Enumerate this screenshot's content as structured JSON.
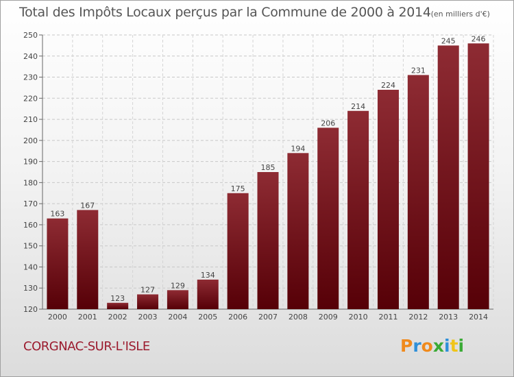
{
  "title": {
    "main": "Total des Impôts Locaux perçus par la Commune de 2000 à 2014",
    "unit": "(en milliers d'€)"
  },
  "commune_name": "CORGNAC-SUR-L'ISLE",
  "logo": {
    "letters": [
      "P",
      "r",
      "o",
      "x",
      "i",
      "t",
      "i"
    ],
    "colors": [
      "#f08a1c",
      "#2e8fd8",
      "#f08a1c",
      "#3aaa35",
      "#2e8fd8",
      "#f0c419",
      "#3aaa35"
    ]
  },
  "chart_data": {
    "type": "bar",
    "categories": [
      "2000",
      "2001",
      "2002",
      "2003",
      "2004",
      "2005",
      "2006",
      "2007",
      "2008",
      "2009",
      "2010",
      "2011",
      "2012",
      "2013",
      "2014"
    ],
    "values": [
      163,
      167,
      123,
      127,
      129,
      134,
      175,
      185,
      194,
      206,
      214,
      224,
      231,
      245,
      246
    ],
    "ylim": [
      120,
      250
    ],
    "yticks": [
      120,
      130,
      140,
      150,
      160,
      170,
      180,
      190,
      200,
      210,
      220,
      230,
      240,
      250
    ],
    "grid": true,
    "bar_color": "#6b0f16",
    "bar_highlight": "#8e2b33"
  }
}
